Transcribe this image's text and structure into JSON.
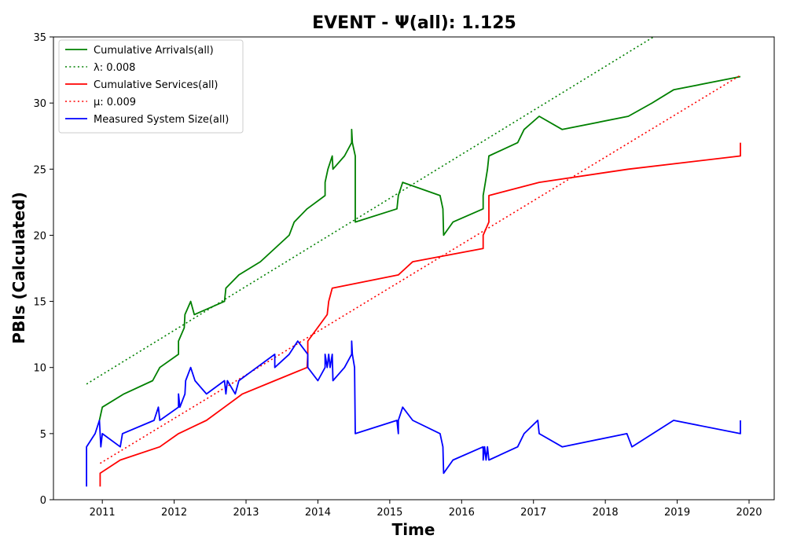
{
  "chart_data": {
    "type": "line",
    "title": "EVENT -  Ψ(all): 1.125",
    "xlabel": "Time",
    "ylabel": "PBIs (Calculated)",
    "xlim": [
      2010.32,
      2020.35
    ],
    "ylim": [
      0,
      35
    ],
    "x_ticks": [
      2011,
      2012,
      2013,
      2014,
      2015,
      2016,
      2017,
      2018,
      2019,
      2020
    ],
    "y_ticks": [
      0,
      5,
      10,
      15,
      20,
      25,
      30,
      35
    ],
    "grid": false,
    "legend_position": "upper-left",
    "series": [
      {
        "name": "Cumulative Arrivals(all)",
        "color": "#008000",
        "style": "solid",
        "points": [
          [
            2010.96,
            6
          ],
          [
            2011.0,
            7
          ],
          [
            2011.3,
            8
          ],
          [
            2011.7,
            9
          ],
          [
            2011.8,
            10
          ],
          [
            2012.06,
            11
          ],
          [
            2012.06,
            12
          ],
          [
            2012.14,
            13
          ],
          [
            2012.15,
            14
          ],
          [
            2012.23,
            15
          ],
          [
            2012.28,
            14
          ],
          [
            2012.7,
            15
          ],
          [
            2012.72,
            16
          ],
          [
            2012.9,
            17
          ],
          [
            2013.2,
            18
          ],
          [
            2013.6,
            20
          ],
          [
            2013.67,
            21
          ],
          [
            2013.85,
            22
          ],
          [
            2014.1,
            23
          ],
          [
            2014.1,
            24
          ],
          [
            2014.14,
            25
          ],
          [
            2014.2,
            26
          ],
          [
            2014.21,
            25
          ],
          [
            2014.37,
            26
          ],
          [
            2014.47,
            27
          ],
          [
            2014.47,
            28
          ],
          [
            2014.48,
            27
          ],
          [
            2014.52,
            26
          ],
          [
            2014.52,
            21
          ],
          [
            2015.1,
            22
          ],
          [
            2015.12,
            23
          ],
          [
            2015.18,
            24
          ],
          [
            2015.7,
            23
          ],
          [
            2015.74,
            22
          ],
          [
            2015.75,
            20
          ],
          [
            2015.88,
            21
          ],
          [
            2016.3,
            22
          ],
          [
            2016.3,
            23
          ],
          [
            2016.33,
            24
          ],
          [
            2016.36,
            25
          ],
          [
            2016.38,
            26
          ],
          [
            2016.78,
            27
          ],
          [
            2016.87,
            28
          ],
          [
            2017.08,
            29
          ],
          [
            2017.4,
            28
          ],
          [
            2018.32,
            29
          ],
          [
            2018.65,
            30
          ],
          [
            2018.95,
            31
          ],
          [
            2019.88,
            32
          ]
        ]
      },
      {
        "name": "λ: 0.008",
        "color": "#008000",
        "style": "dotted",
        "points": [
          [
            2010.78,
            8.75
          ],
          [
            2018.82,
            35.5
          ]
        ]
      },
      {
        "name": "Cumulative Services(all)",
        "color": "#ff0000",
        "style": "solid",
        "points": [
          [
            2010.97,
            1
          ],
          [
            2010.97,
            2
          ],
          [
            2011.25,
            3
          ],
          [
            2011.8,
            4
          ],
          [
            2012.06,
            5
          ],
          [
            2012.45,
            6
          ],
          [
            2012.7,
            7
          ],
          [
            2012.95,
            8
          ],
          [
            2013.4,
            9
          ],
          [
            2013.85,
            10
          ],
          [
            2013.86,
            11
          ],
          [
            2013.86,
            12
          ],
          [
            2014.13,
            14
          ],
          [
            2014.15,
            15
          ],
          [
            2014.2,
            16
          ],
          [
            2015.12,
            17
          ],
          [
            2015.32,
            18
          ],
          [
            2016.3,
            19
          ],
          [
            2016.3,
            20
          ],
          [
            2016.38,
            21
          ],
          [
            2016.38,
            23
          ],
          [
            2017.08,
            24
          ],
          [
            2018.32,
            25
          ],
          [
            2019.88,
            26
          ],
          [
            2019.88,
            27
          ]
        ]
      },
      {
        "name": "μ: 0.009",
        "color": "#ff0000",
        "style": "dotted",
        "points": [
          [
            2010.97,
            2.75
          ],
          [
            2019.88,
            32.1
          ]
        ]
      },
      {
        "name": "Measured System Size(all)",
        "color": "#0000ff",
        "style": "solid",
        "points": [
          [
            2010.78,
            1
          ],
          [
            2010.78,
            4
          ],
          [
            2010.9,
            5
          ],
          [
            2010.96,
            6
          ],
          [
            2010.98,
            4
          ],
          [
            2011.0,
            5
          ],
          [
            2011.25,
            4
          ],
          [
            2011.28,
            5
          ],
          [
            2011.72,
            6
          ],
          [
            2011.78,
            7
          ],
          [
            2011.8,
            6
          ],
          [
            2012.06,
            7
          ],
          [
            2012.06,
            8
          ],
          [
            2012.08,
            7
          ],
          [
            2012.15,
            8
          ],
          [
            2012.16,
            9
          ],
          [
            2012.23,
            10
          ],
          [
            2012.29,
            9
          ],
          [
            2012.45,
            8
          ],
          [
            2012.7,
            9
          ],
          [
            2012.72,
            8
          ],
          [
            2012.74,
            9
          ],
          [
            2012.85,
            8
          ],
          [
            2012.9,
            9
          ],
          [
            2013.15,
            10
          ],
          [
            2013.4,
            11
          ],
          [
            2013.4,
            10
          ],
          [
            2013.6,
            11
          ],
          [
            2013.72,
            12
          ],
          [
            2013.86,
            11
          ],
          [
            2013.86,
            10
          ],
          [
            2014.0,
            9
          ],
          [
            2014.1,
            10
          ],
          [
            2014.1,
            11
          ],
          [
            2014.13,
            10
          ],
          [
            2014.15,
            11
          ],
          [
            2014.17,
            10
          ],
          [
            2014.2,
            11
          ],
          [
            2014.21,
            9
          ],
          [
            2014.37,
            10
          ],
          [
            2014.47,
            11
          ],
          [
            2014.47,
            12
          ],
          [
            2014.48,
            11
          ],
          [
            2014.51,
            10
          ],
          [
            2014.52,
            5
          ],
          [
            2015.1,
            6
          ],
          [
            2015.12,
            5
          ],
          [
            2015.12,
            6
          ],
          [
            2015.18,
            7
          ],
          [
            2015.32,
            6
          ],
          [
            2015.7,
            5
          ],
          [
            2015.74,
            4
          ],
          [
            2015.75,
            2
          ],
          [
            2015.88,
            3
          ],
          [
            2016.3,
            4
          ],
          [
            2016.3,
            3
          ],
          [
            2016.32,
            4
          ],
          [
            2016.34,
            3
          ],
          [
            2016.36,
            4
          ],
          [
            2016.38,
            3
          ],
          [
            2016.78,
            4
          ],
          [
            2016.87,
            5
          ],
          [
            2017.06,
            6
          ],
          [
            2017.08,
            5
          ],
          [
            2017.4,
            4
          ],
          [
            2018.3,
            5
          ],
          [
            2018.37,
            4
          ],
          [
            2018.95,
            6
          ],
          [
            2019.88,
            5
          ],
          [
            2019.88,
            6
          ]
        ]
      }
    ]
  }
}
